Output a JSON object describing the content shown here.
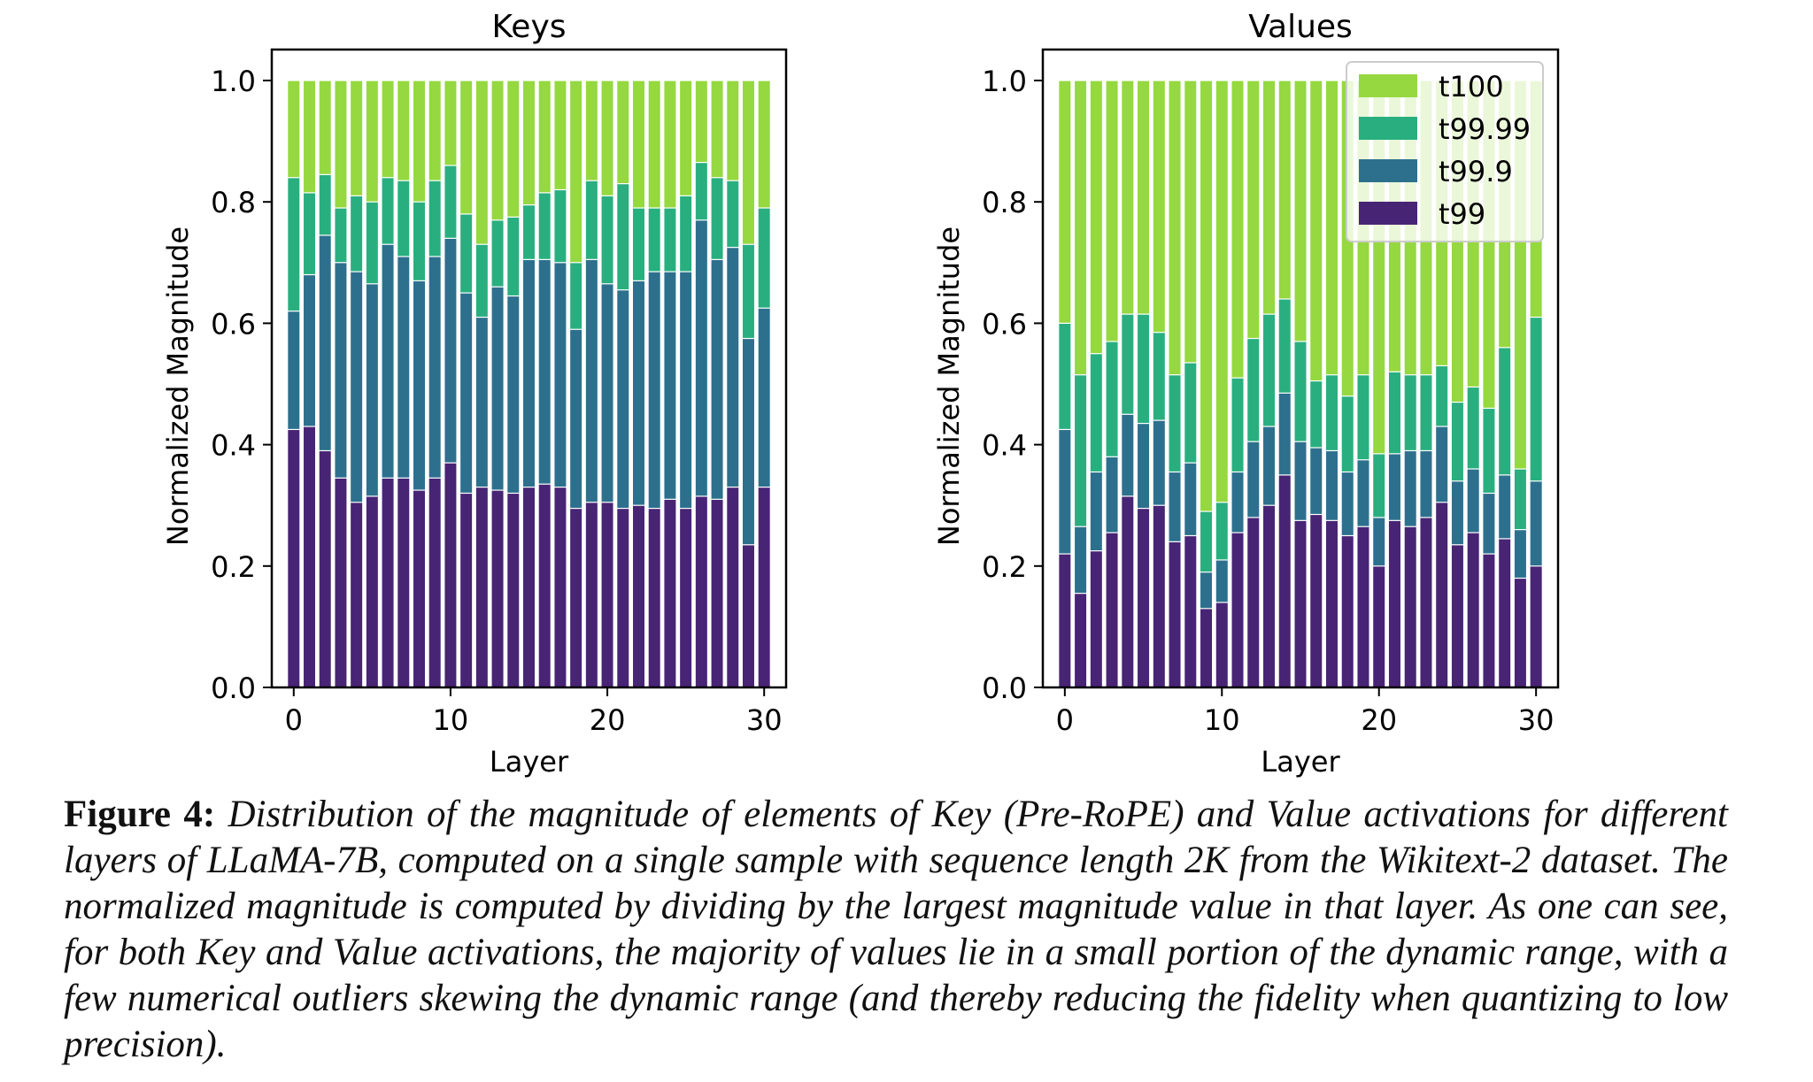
{
  "chart_data": [
    {
      "type": "bar",
      "stacked": true,
      "title": "Keys",
      "xlabel": "Layer",
      "ylabel": "Normalized Magnitude",
      "ylim": [
        0,
        1.05
      ],
      "yticks": [
        "0.0",
        "0.2",
        "0.4",
        "0.6",
        "0.8",
        "1.0"
      ],
      "xticks": [
        "0",
        "10",
        "20",
        "30"
      ],
      "x": [
        0,
        1,
        2,
        3,
        4,
        5,
        6,
        7,
        8,
        9,
        10,
        11,
        12,
        13,
        14,
        15,
        16,
        17,
        18,
        19,
        20,
        21,
        22,
        23,
        24,
        25,
        26,
        27,
        28,
        29,
        30
      ],
      "series": [
        {
          "name": "t100",
          "values": [
            1,
            1,
            1,
            1,
            1,
            1,
            1,
            1,
            1,
            1,
            1,
            1,
            1,
            1,
            1,
            1,
            1,
            1,
            1,
            1,
            1,
            1,
            1,
            1,
            1,
            1,
            1,
            1,
            1,
            1,
            1
          ]
        },
        {
          "name": "t99.99",
          "values": [
            0.84,
            0.815,
            0.845,
            0.79,
            0.81,
            0.8,
            0.84,
            0.835,
            0.8,
            0.835,
            0.86,
            0.78,
            0.73,
            0.77,
            0.775,
            0.795,
            0.815,
            0.82,
            0.7,
            0.835,
            0.81,
            0.83,
            0.79,
            0.79,
            0.79,
            0.81,
            0.865,
            0.84,
            0.835,
            0.73,
            0.79
          ]
        },
        {
          "name": "t99.9",
          "values": [
            0.62,
            0.68,
            0.745,
            0.7,
            0.685,
            0.665,
            0.73,
            0.71,
            0.67,
            0.71,
            0.74,
            0.65,
            0.61,
            0.66,
            0.645,
            0.705,
            0.705,
            0.7,
            0.59,
            0.705,
            0.665,
            0.655,
            0.67,
            0.685,
            0.685,
            0.685,
            0.77,
            0.705,
            0.725,
            0.575,
            0.625
          ]
        },
        {
          "name": "t99",
          "values": [
            0.425,
            0.43,
            0.39,
            0.345,
            0.305,
            0.315,
            0.345,
            0.345,
            0.325,
            0.345,
            0.37,
            0.32,
            0.33,
            0.325,
            0.32,
            0.33,
            0.335,
            0.33,
            0.295,
            0.305,
            0.305,
            0.295,
            0.3,
            0.295,
            0.31,
            0.295,
            0.315,
            0.31,
            0.33,
            0.235,
            0.33
          ]
        }
      ],
      "legend": null,
      "grid": false
    },
    {
      "type": "bar",
      "stacked": true,
      "title": "Values",
      "xlabel": "Layer",
      "ylabel": "Normalized Magnitude",
      "ylim": [
        0,
        1.05
      ],
      "yticks": [
        "0.0",
        "0.2",
        "0.4",
        "0.6",
        "0.8",
        "1.0"
      ],
      "xticks": [
        "0",
        "10",
        "20",
        "30"
      ],
      "x": [
        0,
        1,
        2,
        3,
        4,
        5,
        6,
        7,
        8,
        9,
        10,
        11,
        12,
        13,
        14,
        15,
        16,
        17,
        18,
        19,
        20,
        21,
        22,
        23,
        24,
        25,
        26,
        27,
        28,
        29,
        30
      ],
      "series": [
        {
          "name": "t100",
          "values": [
            1,
            1,
            1,
            1,
            1,
            1,
            1,
            1,
            1,
            1,
            1,
            1,
            1,
            1,
            1,
            1,
            1,
            1,
            1,
            1,
            1,
            1,
            1,
            1,
            1,
            1,
            1,
            1,
            1,
            1,
            1
          ]
        },
        {
          "name": "t99.99",
          "values": [
            0.6,
            0.515,
            0.55,
            0.57,
            0.615,
            0.615,
            0.585,
            0.515,
            0.535,
            0.29,
            0.305,
            0.51,
            0.575,
            0.615,
            0.64,
            0.57,
            0.505,
            0.515,
            0.48,
            0.515,
            0.385,
            0.52,
            0.515,
            0.515,
            0.53,
            0.47,
            0.495,
            0.46,
            0.56,
            0.36,
            0.61
          ]
        },
        {
          "name": "t99.9",
          "values": [
            0.425,
            0.265,
            0.355,
            0.38,
            0.45,
            0.435,
            0.44,
            0.355,
            0.37,
            0.19,
            0.21,
            0.355,
            0.405,
            0.43,
            0.485,
            0.405,
            0.395,
            0.39,
            0.355,
            0.375,
            0.28,
            0.385,
            0.39,
            0.39,
            0.43,
            0.34,
            0.36,
            0.32,
            0.35,
            0.26,
            0.34
          ]
        },
        {
          "name": "t99",
          "values": [
            0.22,
            0.155,
            0.225,
            0.255,
            0.315,
            0.295,
            0.3,
            0.24,
            0.25,
            0.13,
            0.14,
            0.255,
            0.28,
            0.3,
            0.35,
            0.275,
            0.285,
            0.275,
            0.25,
            0.265,
            0.2,
            0.275,
            0.265,
            0.28,
            0.305,
            0.235,
            0.255,
            0.22,
            0.245,
            0.18,
            0.2
          ]
        }
      ],
      "legend": "top-right",
      "grid": false
    }
  ],
  "colors": {
    "t100": "#95d840",
    "t99.99": "#29af7f",
    "t99.9": "#2d708e",
    "t99": "#482475"
  },
  "legend_order": [
    "t100",
    "t99.99",
    "t99.9",
    "t99"
  ],
  "caption": {
    "label": "Figure 4:",
    "text": "Distribution of the magnitude of elements of Key (Pre-RoPE) and Value activations for different layers of LLaMA-7B, computed on a single sample with sequence length 2K from the Wikitext-2 dataset. The normalized magnitude is computed by dividing by the largest magnitude value in that layer. As one can see, for both Key and Value activations, the majority of values lie in a small portion of the dynamic range, with a few numerical outliers skewing the dynamic range (and thereby reducing the fidelity when quantizing to low precision)."
  }
}
